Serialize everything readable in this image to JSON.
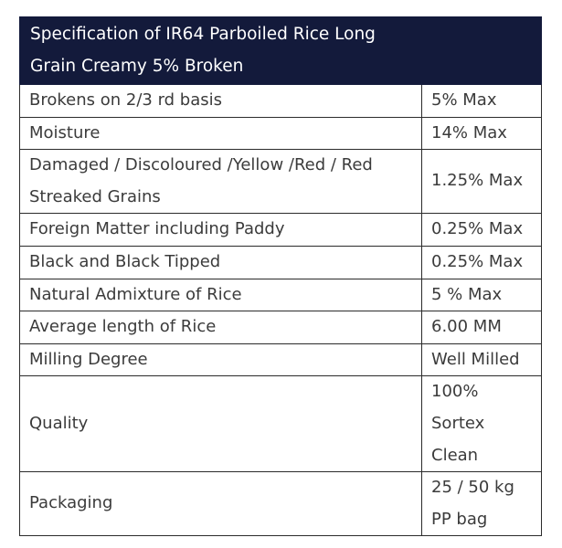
{
  "title": "Specification of IR64 Parboiled Rice Long Grain Creamy 5% Broken",
  "rows": [
    {
      "param": "Brokens on 2/3 rd basis",
      "value": "5% Max"
    },
    {
      "param": "Moisture",
      "value": "14% Max"
    },
    {
      "param": "Damaged / Discoloured /Yellow /Red / Red Streaked Grains",
      "value": "1.25% Max"
    },
    {
      "param": "Foreign Matter including Paddy",
      "value": "0.25% Max"
    },
    {
      "param": "Black and Black Tipped",
      "value": "0.25% Max"
    },
    {
      "param": "Natural Admixture of Rice",
      "value": "5 % Max"
    },
    {
      "param": "Average length of Rice",
      "value": "6.00 MM"
    },
    {
      "param": "Milling Degree",
      "value": "Well Milled"
    },
    {
      "param": "Quality",
      "value": "100% Sortex Clean"
    },
    {
      "param": "Packaging",
      "value": "25 / 50 kg PP bag"
    }
  ]
}
